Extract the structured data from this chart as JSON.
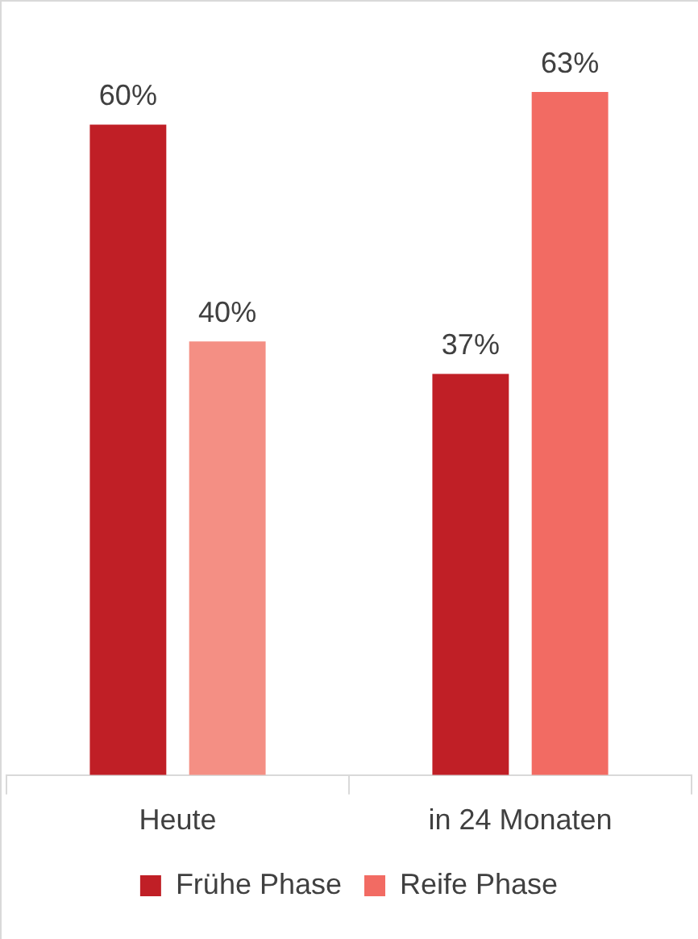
{
  "chart_data": {
    "type": "bar",
    "categories": [
      "Heute",
      "in 24 Monaten"
    ],
    "legend": "bottom",
    "grid": false,
    "series": [
      {
        "name": "Frühe Phase",
        "color": "#c01f26",
        "values": [
          60,
          37
        ],
        "value_labels": [
          "60%",
          "37%"
        ]
      },
      {
        "name": "Reife Phase",
        "color": "#f26b63",
        "colors": [
          "#f48f84",
          "#f26b63"
        ],
        "values": [
          40,
          63
        ],
        "value_labels": [
          "40%",
          "63%"
        ]
      }
    ]
  }
}
